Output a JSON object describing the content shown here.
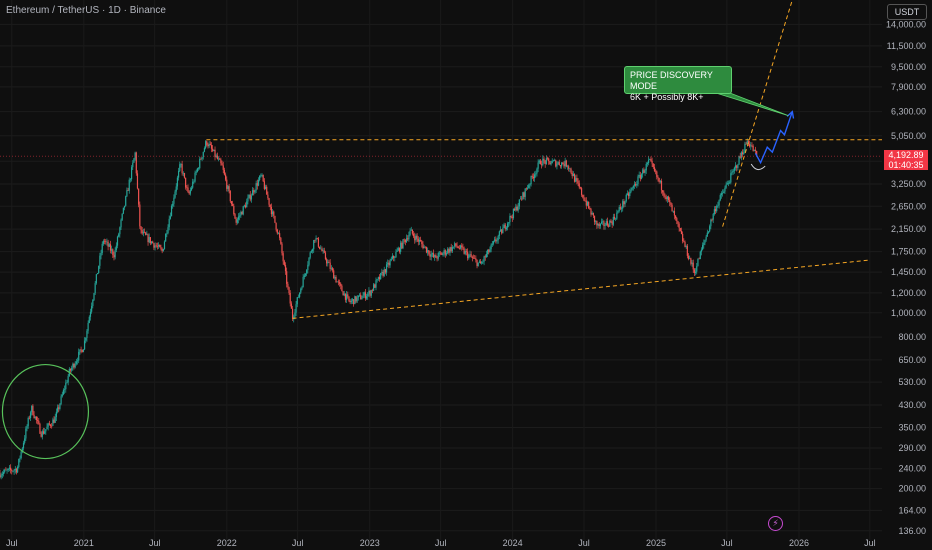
{
  "header": {
    "title": "Ethereum / TetherUS · 1D · Binance"
  },
  "currency_badge": "USDT",
  "last_price": {
    "value": "4,192.89",
    "countdown": "01:40:35"
  },
  "callout": {
    "line1": "PRICE DISCOVERY MODE",
    "line2": "6K + Possibly 8K+"
  },
  "colors": {
    "up": "#26a69a",
    "down": "#ef5350",
    "trend": "#f5a623",
    "circle": "#58c25b",
    "projection": "#2962ff",
    "price": "#f23645"
  },
  "chart_data": {
    "type": "candlestick",
    "symbol": "ETHUSDT",
    "scale": "log",
    "ylim": [
      125,
      17500
    ],
    "y_ticks": [
      136,
      164,
      200,
      240,
      290,
      350,
      430,
      530,
      650,
      800,
      1000,
      1200,
      1450,
      1750,
      2150,
      2650,
      3250,
      4000,
      5050,
      6300,
      7900,
      9500,
      11500,
      14000
    ],
    "y_tick_labels": [
      "136.00",
      "164.00",
      "200.00",
      "240.00",
      "290.00",
      "350.00",
      "430.00",
      "530.00",
      "650.00",
      "800.00",
      "1,000.00",
      "1,200.00",
      "1,450.00",
      "1,750.00",
      "2,150.00",
      "2,650.00",
      "3,250.00",
      "4,000.00",
      "5,050.00",
      "6,300.00",
      "7,900.00",
      "9,500.00",
      "11,500.00",
      "14,000.00"
    ],
    "x_ticks": [
      "Jul",
      "2021",
      "Jul",
      "2022",
      "Jul",
      "2023",
      "Jul",
      "2024",
      "Jul",
      "2025",
      "Jul",
      "2026",
      "Jul"
    ],
    "price_path": [
      [
        "2020-06-01",
        230
      ],
      [
        "2020-07-15",
        240
      ],
      [
        "2020-08-20",
        420
      ],
      [
        "2020-09-15",
        330
      ],
      [
        "2020-10-20",
        380
      ],
      [
        "2020-11-25",
        580
      ],
      [
        "2021-01-01",
        740
      ],
      [
        "2021-02-20",
        1950
      ],
      [
        "2021-03-20",
        1700
      ],
      [
        "2021-05-12",
        4300
      ],
      [
        "2021-05-25",
        2100
      ],
      [
        "2021-07-20",
        1750
      ],
      [
        "2021-09-05",
        3900
      ],
      [
        "2021-09-25",
        2900
      ],
      [
        "2021-11-10",
        4800
      ],
      [
        "2021-12-20",
        3800
      ],
      [
        "2022-01-25",
        2300
      ],
      [
        "2022-03-30",
        3500
      ],
      [
        "2022-05-15",
        2000
      ],
      [
        "2022-06-18",
        960
      ],
      [
        "2022-08-14",
        2000
      ],
      [
        "2022-10-15",
        1280
      ],
      [
        "2022-11-10",
        1100
      ],
      [
        "2023-01-01",
        1200
      ],
      [
        "2023-04-15",
        2100
      ],
      [
        "2023-06-15",
        1650
      ],
      [
        "2023-08-10",
        1850
      ],
      [
        "2023-10-10",
        1550
      ],
      [
        "2024-01-10",
        2600
      ],
      [
        "2024-03-12",
        4000
      ],
      [
        "2024-05-20",
        3900
      ],
      [
        "2024-08-05",
        2200
      ],
      [
        "2024-09-10",
        2300
      ],
      [
        "2024-12-15",
        4000
      ],
      [
        "2025-02-05",
        2700
      ],
      [
        "2025-04-09",
        1450
      ],
      [
        "2025-06-01",
        2600
      ],
      [
        "2025-07-20",
        3700
      ],
      [
        "2025-08-23",
        4850
      ],
      [
        "2025-09-15",
        4200
      ]
    ],
    "annotations": {
      "resistance": {
        "price": 4870,
        "from": "2021-11-10",
        "to": "2026-07-01"
      },
      "support_trendline": [
        [
          "2022-06-18",
          950
        ],
        [
          "2026-07-01",
          1620
        ]
      ],
      "breakout_line": [
        [
          "2025-06-20",
          2200
        ],
        [
          "2025-12-15",
          17500
        ]
      ],
      "projection": [
        [
          "2025-09-12",
          4300
        ],
        [
          "2025-09-25",
          3950
        ],
        [
          "2025-10-12",
          4550
        ],
        [
          "2025-10-25",
          4350
        ],
        [
          "2025-11-15",
          5300
        ],
        [
          "2025-11-25",
          5100
        ],
        [
          "2025-12-15",
          6300
        ]
      ]
    }
  }
}
